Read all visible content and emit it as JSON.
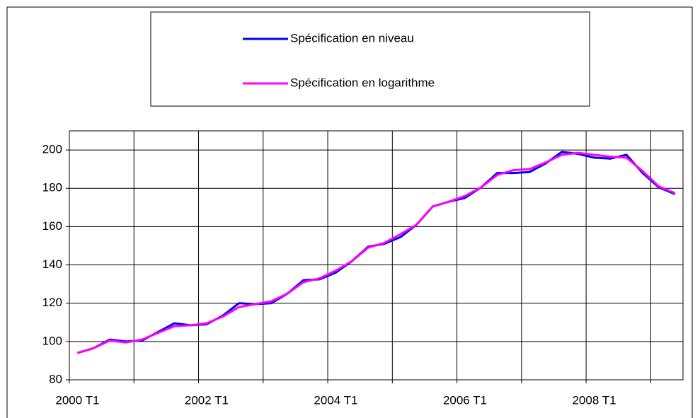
{
  "chart_data": {
    "type": "line",
    "categories": [
      "2000 T1",
      null,
      null,
      null,
      null,
      null,
      null,
      null,
      "2002 T1",
      null,
      null,
      null,
      null,
      null,
      null,
      null,
      "2004 T1",
      null,
      null,
      null,
      null,
      null,
      null,
      null,
      "2006 T1",
      null,
      null,
      null,
      null,
      null,
      null,
      null,
      "2008 T1",
      null,
      null,
      null,
      null,
      null
    ],
    "series": [
      {
        "name": "Spécification en niveau",
        "color": "#0000e6",
        "values": [
          94,
          96.5,
          101,
          100,
          100.5,
          105,
          109.5,
          108.5,
          109,
          113.5,
          120,
          119.5,
          120,
          125,
          132,
          132.5,
          136,
          142,
          149.5,
          151,
          154.5,
          161,
          170.5,
          173,
          175,
          180.5,
          188,
          188,
          188.5,
          193,
          199,
          198,
          196,
          195.5,
          197.5,
          188,
          180.5,
          177
        ]
      },
      {
        "name": "Spécification en logarithme",
        "color": "#ff00ff",
        "values": [
          94,
          96.5,
          100.5,
          99.5,
          101,
          104.5,
          108,
          108.5,
          109.5,
          113,
          118,
          119.5,
          121,
          125,
          131,
          133,
          137,
          142,
          149,
          151.5,
          156,
          161,
          170.5,
          173,
          176,
          180.5,
          187,
          189.5,
          190,
          193.5,
          197.5,
          198.5,
          197.5,
          196.5,
          196,
          189,
          181,
          177.5
        ]
      }
    ],
    "ylim": [
      80,
      210
    ],
    "yticks": [
      80,
      100,
      120,
      140,
      160,
      180,
      200
    ],
    "grid": true
  }
}
